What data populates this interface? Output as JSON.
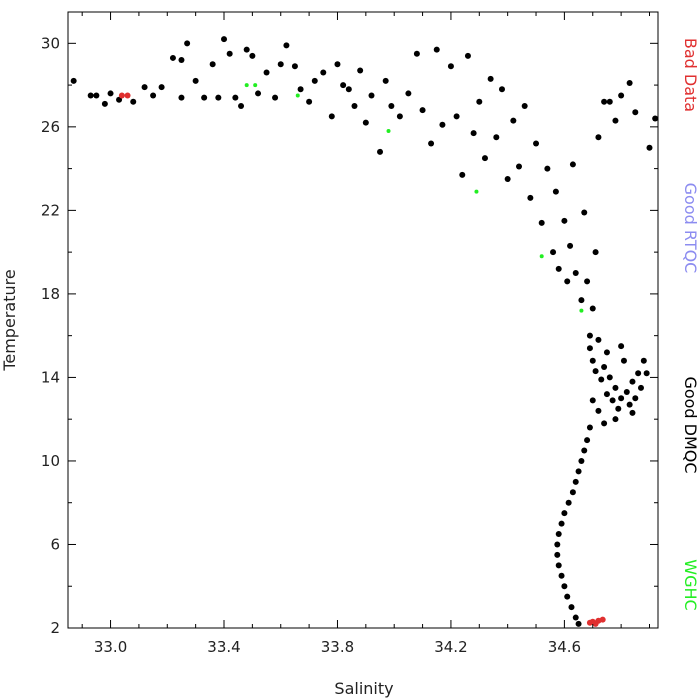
{
  "chart_data": {
    "type": "scatter",
    "xlabel": "Salinity",
    "ylabel": "Temperature",
    "xlim": [
      32.85,
      34.93
    ],
    "ylim": [
      2,
      31.5
    ],
    "x_ticks": [
      "33.0",
      "33.4",
      "33.8",
      "34.2",
      "34.6"
    ],
    "x_tick_values": [
      33.0,
      33.4,
      33.8,
      34.2,
      34.6
    ],
    "y_ticks": [
      "2",
      "6",
      "10",
      "14",
      "18",
      "22",
      "26",
      "30"
    ],
    "y_tick_values": [
      2,
      6,
      10,
      14,
      18,
      22,
      26,
      30
    ],
    "grid": false,
    "legend_position": "right",
    "series": [
      {
        "name": "Bad Data",
        "color": "#e03030",
        "points": [
          [
            33.04,
            27.5
          ],
          [
            33.06,
            27.5
          ],
          [
            34.69,
            2.25
          ],
          [
            34.7,
            2.3
          ],
          [
            34.71,
            2.2
          ],
          [
            34.72,
            2.35
          ],
          [
            34.735,
            2.4
          ]
        ]
      },
      {
        "name": "Good RTQC",
        "color": "#8c8cf0",
        "points": []
      },
      {
        "name": "Good DMQC",
        "color": "#000000",
        "points": [
          [
            32.87,
            28.2
          ],
          [
            32.93,
            27.5
          ],
          [
            32.95,
            27.5
          ],
          [
            32.98,
            27.1
          ],
          [
            33.0,
            27.6
          ],
          [
            33.03,
            27.3
          ],
          [
            33.08,
            27.2
          ],
          [
            33.12,
            27.9
          ],
          [
            33.15,
            27.5
          ],
          [
            33.18,
            27.9
          ],
          [
            33.22,
            29.3
          ],
          [
            33.25,
            29.2
          ],
          [
            33.25,
            27.4
          ],
          [
            33.27,
            30.0
          ],
          [
            33.3,
            28.2
          ],
          [
            33.33,
            27.4
          ],
          [
            33.36,
            29.0
          ],
          [
            33.38,
            27.4
          ],
          [
            33.4,
            30.2
          ],
          [
            33.42,
            29.5
          ],
          [
            33.44,
            27.4
          ],
          [
            33.46,
            27.0
          ],
          [
            33.48,
            29.7
          ],
          [
            33.5,
            29.4
          ],
          [
            33.52,
            27.6
          ],
          [
            33.55,
            28.6
          ],
          [
            33.58,
            27.4
          ],
          [
            33.6,
            29.0
          ],
          [
            33.62,
            29.9
          ],
          [
            33.65,
            28.9
          ],
          [
            33.67,
            27.8
          ],
          [
            33.7,
            27.2
          ],
          [
            33.72,
            28.2
          ],
          [
            33.75,
            28.6
          ],
          [
            33.78,
            26.5
          ],
          [
            33.8,
            29.0
          ],
          [
            33.82,
            28.0
          ],
          [
            33.84,
            27.8
          ],
          [
            33.86,
            27.0
          ],
          [
            33.88,
            28.7
          ],
          [
            33.9,
            26.2
          ],
          [
            33.92,
            27.5
          ],
          [
            33.95,
            24.8
          ],
          [
            33.97,
            28.2
          ],
          [
            33.99,
            27.0
          ],
          [
            34.02,
            26.5
          ],
          [
            34.05,
            27.6
          ],
          [
            34.08,
            29.5
          ],
          [
            34.1,
            26.8
          ],
          [
            34.13,
            25.2
          ],
          [
            34.15,
            29.7
          ],
          [
            34.17,
            26.1
          ],
          [
            34.2,
            28.9
          ],
          [
            34.22,
            26.5
          ],
          [
            34.24,
            23.7
          ],
          [
            34.26,
            29.4
          ],
          [
            34.28,
            25.7
          ],
          [
            34.3,
            27.2
          ],
          [
            34.32,
            24.5
          ],
          [
            34.34,
            28.3
          ],
          [
            34.36,
            25.5
          ],
          [
            34.38,
            27.8
          ],
          [
            34.4,
            23.5
          ],
          [
            34.42,
            26.3
          ],
          [
            34.44,
            24.1
          ],
          [
            34.46,
            27.0
          ],
          [
            34.48,
            22.6
          ],
          [
            34.5,
            25.2
          ],
          [
            34.52,
            21.4
          ],
          [
            34.54,
            24.0
          ],
          [
            34.56,
            20.0
          ],
          [
            34.57,
            22.9
          ],
          [
            34.58,
            19.2
          ],
          [
            34.6,
            21.5
          ],
          [
            34.61,
            18.6
          ],
          [
            34.62,
            20.3
          ],
          [
            34.63,
            24.2
          ],
          [
            34.64,
            19.0
          ],
          [
            34.66,
            17.7
          ],
          [
            34.67,
            21.9
          ],
          [
            34.68,
            18.6
          ],
          [
            34.69,
            16.0
          ],
          [
            34.7,
            17.3
          ],
          [
            34.71,
            20.0
          ],
          [
            34.72,
            25.5
          ],
          [
            34.74,
            27.2
          ],
          [
            34.76,
            27.2
          ],
          [
            34.78,
            26.3
          ],
          [
            34.8,
            27.5
          ],
          [
            34.83,
            28.1
          ],
          [
            34.85,
            26.7
          ],
          [
            34.9,
            25.0
          ],
          [
            34.92,
            26.4
          ],
          [
            34.69,
            15.4
          ],
          [
            34.7,
            14.8
          ],
          [
            34.71,
            14.3
          ],
          [
            34.72,
            15.8
          ],
          [
            34.73,
            13.9
          ],
          [
            34.74,
            14.5
          ],
          [
            34.75,
            13.2
          ],
          [
            34.76,
            14.0
          ],
          [
            34.77,
            12.9
          ],
          [
            34.78,
            13.5
          ],
          [
            34.79,
            12.5
          ],
          [
            34.8,
            13.0
          ],
          [
            34.81,
            14.8
          ],
          [
            34.82,
            13.3
          ],
          [
            34.83,
            12.7
          ],
          [
            34.84,
            13.8
          ],
          [
            34.85,
            13.0
          ],
          [
            34.86,
            14.2
          ],
          [
            34.87,
            13.5
          ],
          [
            34.88,
            14.8
          ],
          [
            34.89,
            14.2
          ],
          [
            34.84,
            12.3
          ],
          [
            34.78,
            12.0
          ],
          [
            34.74,
            11.8
          ],
          [
            34.72,
            12.4
          ],
          [
            34.7,
            12.9
          ],
          [
            34.75,
            15.2
          ],
          [
            34.8,
            15.5
          ],
          [
            34.69,
            11.6
          ],
          [
            34.68,
            11.0
          ],
          [
            34.67,
            10.5
          ],
          [
            34.66,
            10.0
          ],
          [
            34.65,
            9.5
          ],
          [
            34.64,
            9.0
          ],
          [
            34.63,
            8.5
          ],
          [
            34.615,
            8.0
          ],
          [
            34.6,
            7.5
          ],
          [
            34.59,
            7.0
          ],
          [
            34.58,
            6.5
          ],
          [
            34.575,
            6.0
          ],
          [
            34.575,
            5.5
          ],
          [
            34.58,
            5.0
          ],
          [
            34.59,
            4.5
          ],
          [
            34.6,
            4.0
          ],
          [
            34.61,
            3.5
          ],
          [
            34.625,
            3.0
          ],
          [
            34.64,
            2.5
          ],
          [
            34.65,
            2.2
          ]
        ]
      },
      {
        "name": "WGHC",
        "color": "#22ee22",
        "points": [
          [
            33.48,
            28.0
          ],
          [
            33.51,
            28.0
          ],
          [
            33.66,
            27.5
          ],
          [
            33.98,
            25.8
          ],
          [
            34.29,
            22.9
          ],
          [
            34.52,
            19.8
          ],
          [
            34.66,
            17.2
          ]
        ]
      }
    ]
  }
}
